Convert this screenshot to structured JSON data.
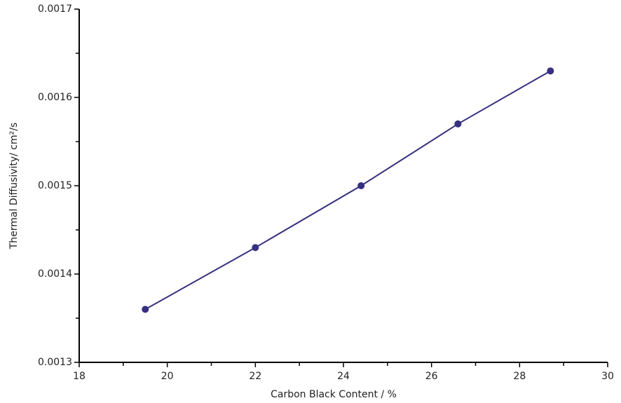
{
  "chart_data": {
    "type": "line",
    "x_label": "Carbon Black Content / %",
    "y_label": "Thermal Diffusivity/ cm²/s",
    "x": [
      19.5,
      22.0,
      24.4,
      26.6,
      28.7
    ],
    "series": [
      {
        "color": "#35307f",
        "values": [
          0.00136,
          0.00143,
          0.0015,
          0.00157,
          0.00163
        ]
      }
    ],
    "markers": true,
    "xlim": [
      18,
      30
    ],
    "xticks": [
      18,
      20,
      22,
      24,
      26,
      28,
      30
    ],
    "ylim": [
      0.0013,
      0.0017
    ],
    "yticks": [
      0.0013,
      0.0014,
      0.0015,
      0.0016,
      0.0017
    ],
    "grid": false
  }
}
